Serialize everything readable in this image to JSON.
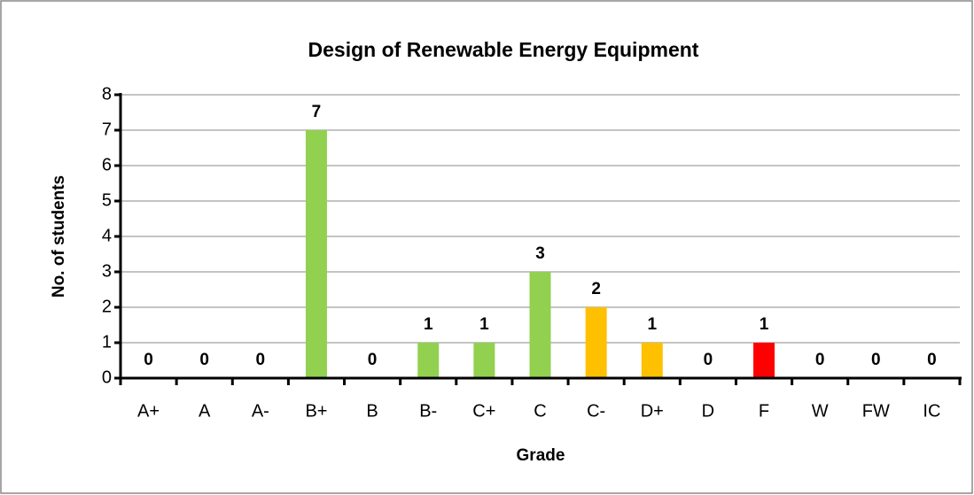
{
  "chart_data": {
    "type": "bar",
    "title": "Design of Renewable Energy Equipment",
    "x_label": "Grade",
    "y_label": "No. of students",
    "categories": [
      "A+",
      "A",
      "A-",
      "B+",
      "B",
      "B-",
      "C+",
      "C",
      "C-",
      "D+",
      "D",
      "F",
      "W",
      "FW",
      "IC"
    ],
    "values": [
      0,
      0,
      0,
      7,
      0,
      1,
      1,
      3,
      2,
      1,
      0,
      1,
      0,
      0,
      0
    ],
    "colors": [
      "#92d050",
      "#92d050",
      "#92d050",
      "#92d050",
      "#92d050",
      "#92d050",
      "#92d050",
      "#92d050",
      "#ffc000",
      "#ffc000",
      "#ffc000",
      "#ff0000",
      "#ff0000",
      "#ff0000",
      "#ff0000"
    ],
    "ylim": [
      0,
      8
    ],
    "yticks": [
      0,
      1,
      2,
      3,
      4,
      5,
      6,
      7,
      8
    ],
    "grid": true
  }
}
